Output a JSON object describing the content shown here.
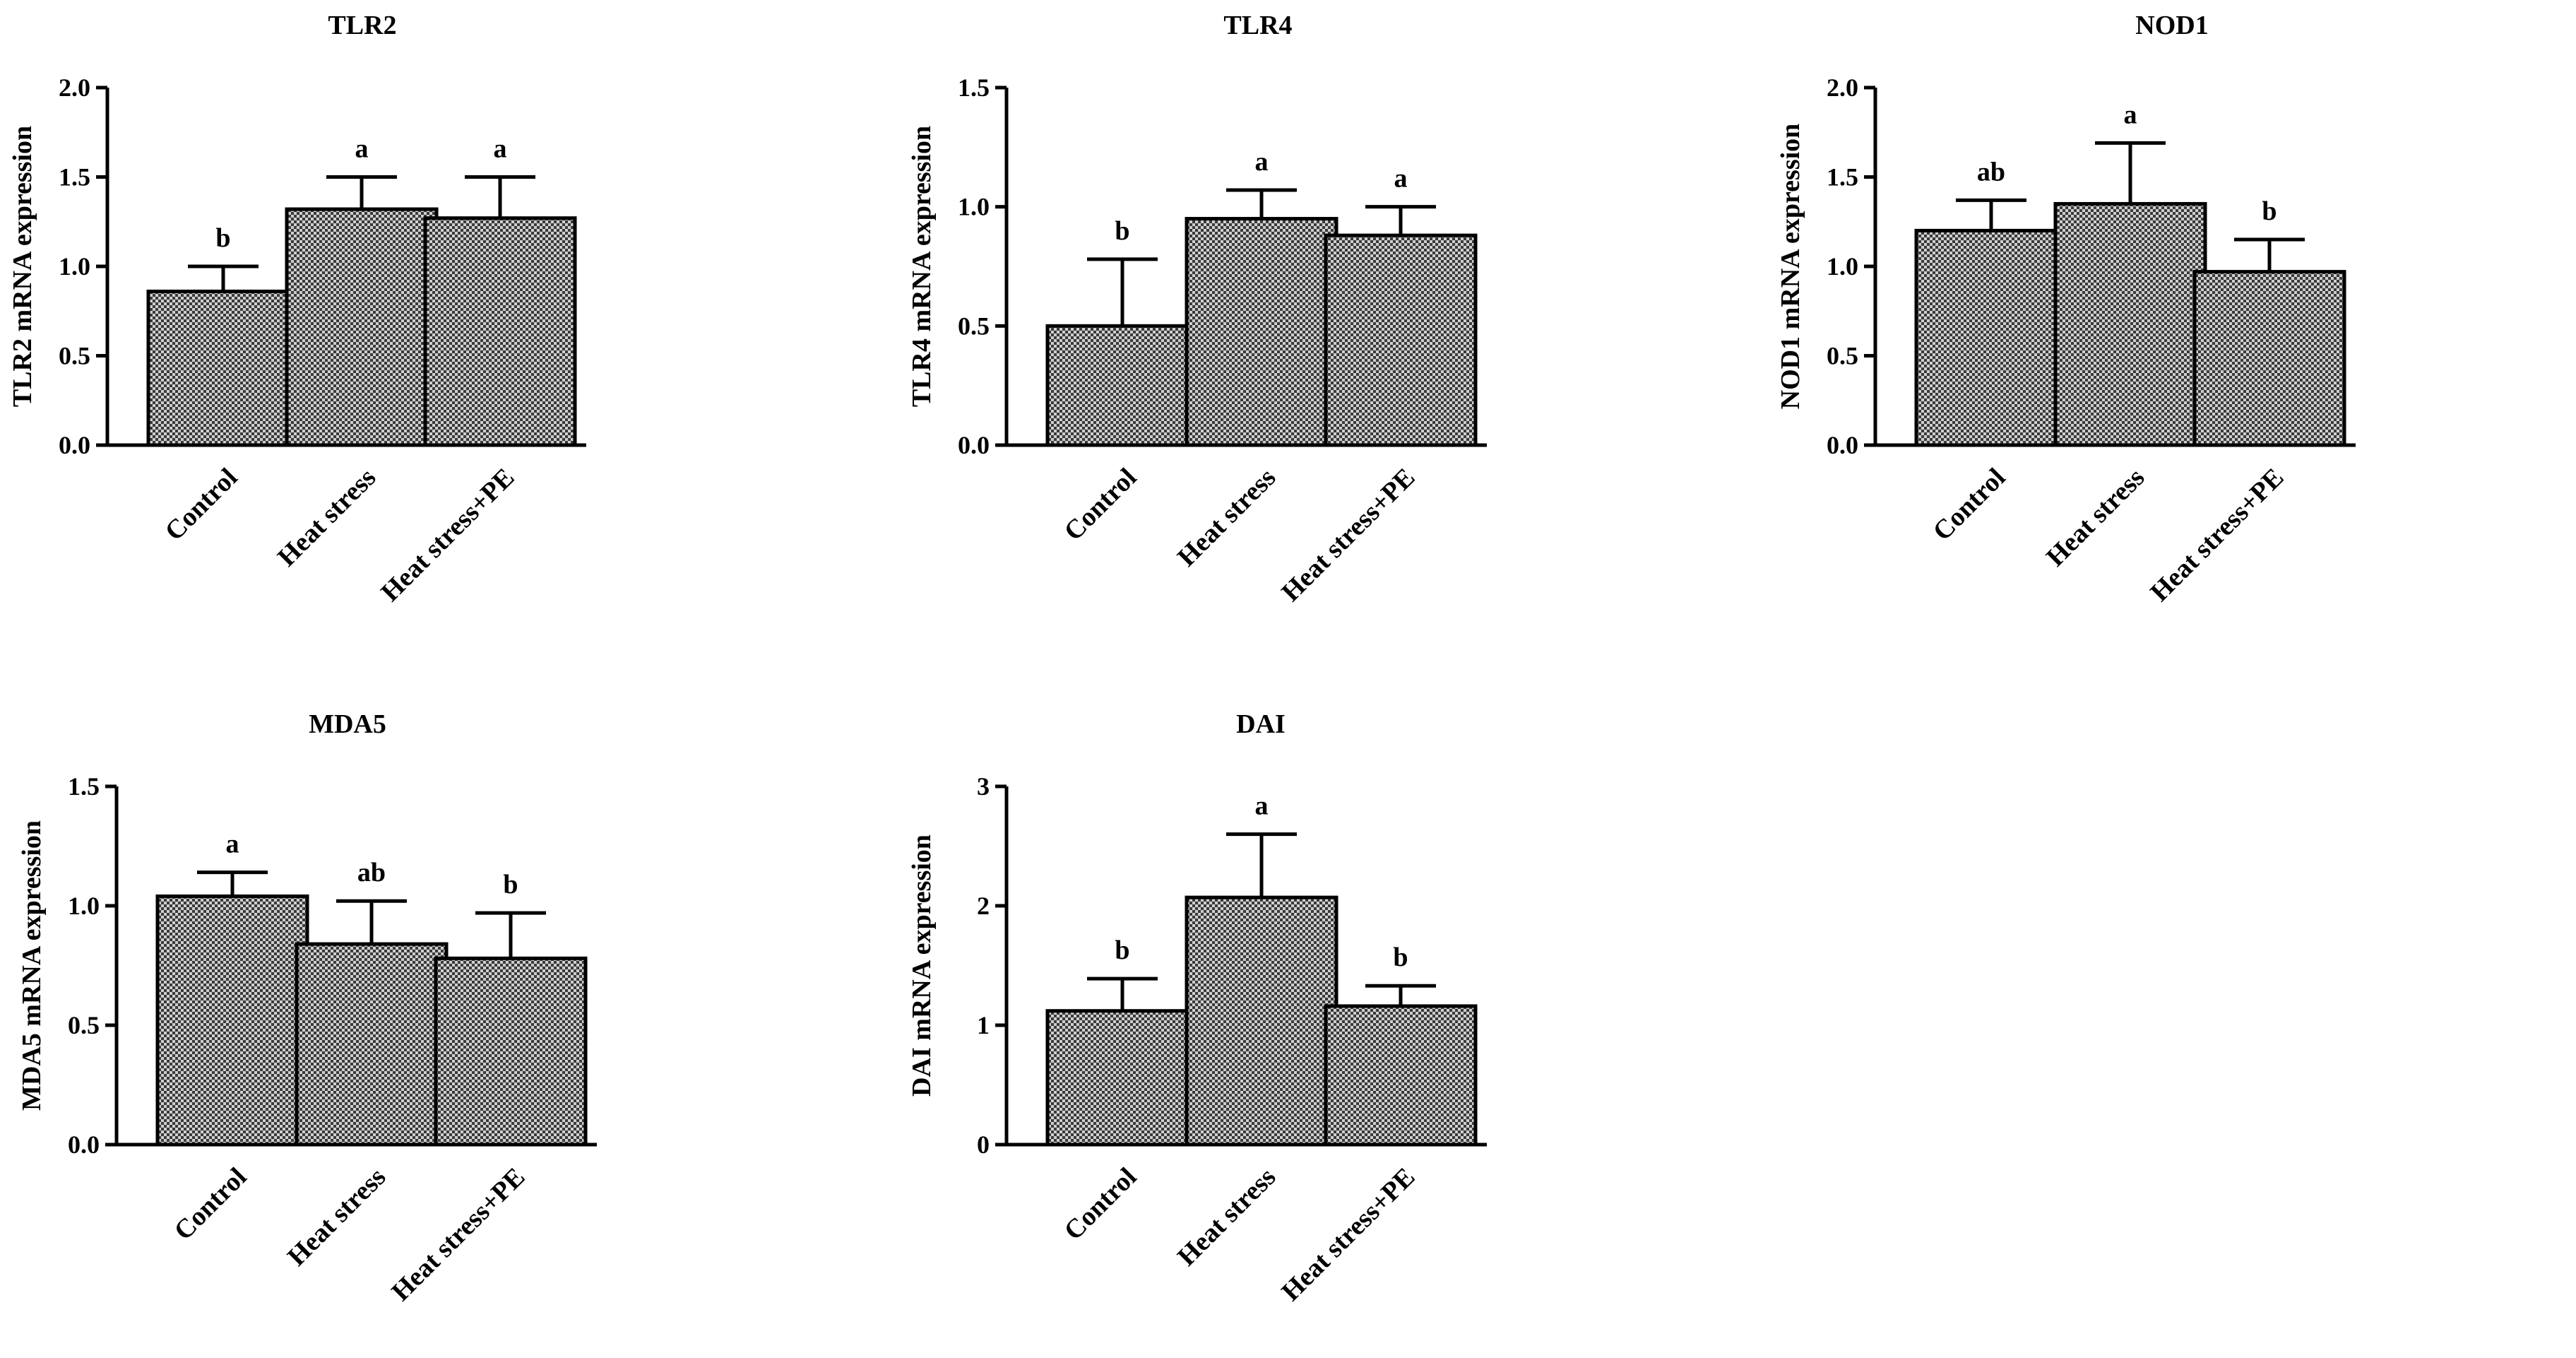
{
  "chart_data": [
    {
      "type": "bar",
      "title": "TLR2",
      "ylabel": "TLR2 mRNA expression",
      "xlabel": "",
      "categories": [
        "Control",
        "Heat stress",
        "Heat stress+PE"
      ],
      "values": [
        0.86,
        1.32,
        1.27
      ],
      "errors": [
        0.14,
        0.18,
        0.23
      ],
      "letters": [
        "b",
        "a",
        "a"
      ],
      "ylim": [
        0,
        2.0
      ],
      "yticks": [
        0.0,
        0.5,
        1.0,
        1.5,
        2.0
      ],
      "ytick_labels": [
        "0.0",
        "0.5",
        "1.0",
        "1.5",
        "2.0"
      ]
    },
    {
      "type": "bar",
      "title": "TLR4",
      "ylabel": "TLR4 mRNA expression",
      "xlabel": "",
      "categories": [
        "Control",
        "Heat stress",
        "Heat stress+PE"
      ],
      "values": [
        0.5,
        0.95,
        0.88
      ],
      "errors": [
        0.28,
        0.12,
        0.12
      ],
      "letters": [
        "b",
        "a",
        "a"
      ],
      "ylim": [
        0,
        1.5
      ],
      "yticks": [
        0.0,
        0.5,
        1.0,
        1.5
      ],
      "ytick_labels": [
        "0.0",
        "0.5",
        "1.0",
        "1.5"
      ]
    },
    {
      "type": "bar",
      "title": "NOD1",
      "ylabel": "NOD1 mRNA expression",
      "xlabel": "",
      "categories": [
        "Control",
        "Heat stress",
        "Heat stress+PE"
      ],
      "values": [
        1.2,
        1.35,
        0.97
      ],
      "errors": [
        0.17,
        0.34,
        0.18
      ],
      "letters": [
        "ab",
        "a",
        "b"
      ],
      "ylim": [
        0,
        2.0
      ],
      "yticks": [
        0.0,
        0.5,
        1.0,
        1.5,
        2.0
      ],
      "ytick_labels": [
        "0.0",
        "0.5",
        "1.0",
        "1.5",
        "2.0"
      ]
    },
    {
      "type": "bar",
      "title": "MDA5",
      "ylabel": "MDA5 mRNA expression",
      "xlabel": "",
      "categories": [
        "Control",
        "Heat stress",
        "Heat stress+PE"
      ],
      "values": [
        1.04,
        0.84,
        0.78
      ],
      "errors": [
        0.1,
        0.18,
        0.19
      ],
      "letters": [
        "a",
        "ab",
        "b"
      ],
      "ylim": [
        0,
        1.5
      ],
      "yticks": [
        0.0,
        0.5,
        1.0,
        1.5
      ],
      "ytick_labels": [
        "0.0",
        "0.5",
        "1.0",
        "1.5"
      ]
    },
    {
      "type": "bar",
      "title": "DAI",
      "ylabel": "DAI mRNA expression",
      "xlabel": "",
      "categories": [
        "Control",
        "Heat stress",
        "Heat stress+PE"
      ],
      "values": [
        1.12,
        2.07,
        1.16
      ],
      "errors": [
        0.27,
        0.53,
        0.17
      ],
      "letters": [
        "b",
        "a",
        "b"
      ],
      "ylim": [
        0,
        3
      ],
      "yticks": [
        0,
        1,
        2,
        3
      ],
      "ytick_labels": [
        "0",
        "1",
        "2",
        "3"
      ]
    }
  ]
}
